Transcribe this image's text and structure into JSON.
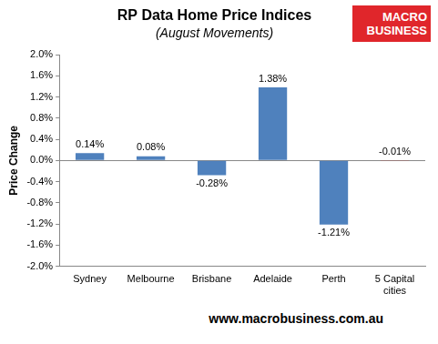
{
  "chart_data": {
    "type": "bar",
    "title": "RP Data Home Price Indices",
    "subtitle": "(August Movements)",
    "y_label": "Price Change",
    "categories": [
      "Sydney",
      "Melbourne",
      "Brisbane",
      "Adelaide",
      "Perth",
      "5 Capital cities"
    ],
    "values": [
      0.14,
      0.08,
      -0.28,
      1.38,
      -1.21,
      -0.01
    ],
    "value_labels": [
      "0.14%",
      "0.08%",
      "-0.28%",
      "1.38%",
      "-1.21%",
      "-0.01%"
    ],
    "colors": [
      "#4f81bd",
      "#4f81bd",
      "#4f81bd",
      "#4f81bd",
      "#4f81bd",
      "#c0504d"
    ],
    "ylim": [
      -2.0,
      2.0
    ],
    "yticks": [
      {
        "value": -2.0,
        "label": "-2.0%"
      },
      {
        "value": -1.6,
        "label": "-1.6%"
      },
      {
        "value": -1.2,
        "label": "-1.2%"
      },
      {
        "value": -0.8,
        "label": "-0.8%"
      },
      {
        "value": -0.4,
        "label": "-0.4%"
      },
      {
        "value": 0,
        "label": "0.0%"
      },
      {
        "value": 0.4,
        "label": "0.4%"
      },
      {
        "value": 0.8,
        "label": "0.8%"
      },
      {
        "value": 1.2,
        "label": "1.2%"
      },
      {
        "value": 1.6,
        "label": "1.6%"
      },
      {
        "value": 2.0,
        "label": "2.0%"
      }
    ],
    "grid": false,
    "data_labels": true,
    "annotations": [
      "MACRO BUSINESS",
      "www.macrobusiness.com.au"
    ]
  }
}
